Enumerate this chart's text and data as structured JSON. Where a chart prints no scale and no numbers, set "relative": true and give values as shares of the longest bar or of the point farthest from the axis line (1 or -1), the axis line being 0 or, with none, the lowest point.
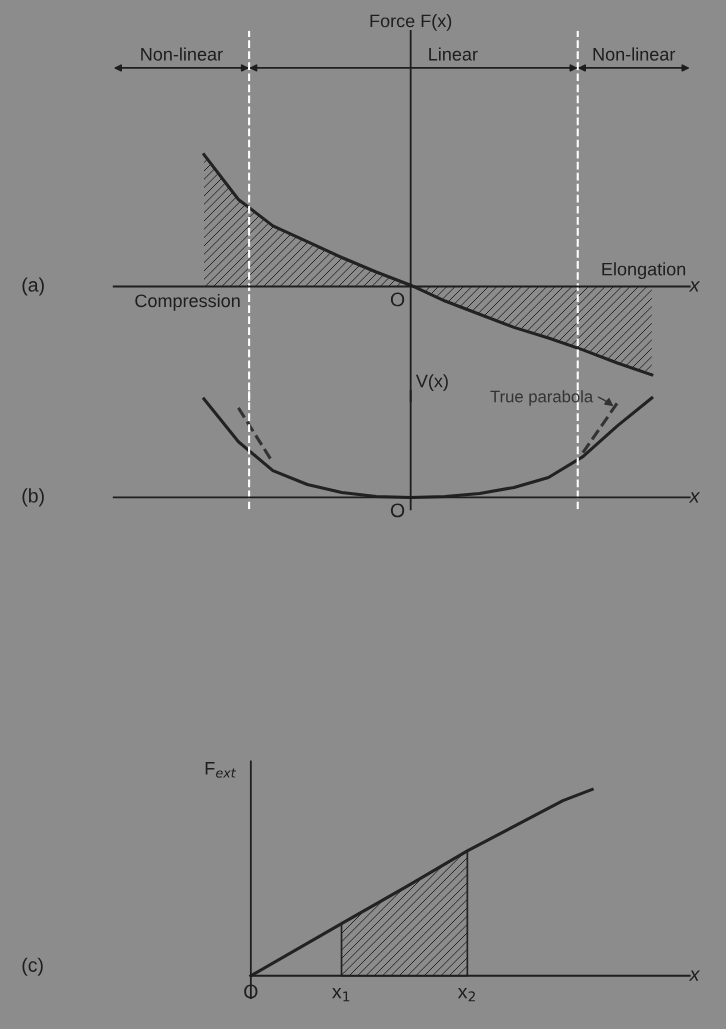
{
  "chart_data": [
    {
      "type": "area",
      "ylabel": "Force F(x)",
      "xlabel": "x",
      "relative": true,
      "tick_labels": false,
      "categories": [
        null,
        null,
        null,
        null,
        null,
        null,
        null,
        null,
        null,
        null,
        null,
        null,
        null,
        null
      ],
      "series": [
        {
          "color": "#222222",
          "values": [
            1,
            0.66,
            0.46,
            0.34,
            0.22,
            0.11,
            0.01,
            -0.11,
            -0.21,
            -0.31,
            -0.39,
            -0.48,
            -0.58,
            -0.67
          ]
        }
      ],
      "annotations": [
        "Non-linear",
        "Linear",
        "Non-linear",
        "Compression",
        "Elongation",
        "O",
        "(a)"
      ]
    },
    {
      "type": "line",
      "ylabel": "V(x)",
      "xlabel": "x",
      "relative": true,
      "tick_labels": false,
      "categories": [
        null,
        null,
        null,
        null,
        null,
        null,
        null,
        null,
        null,
        null,
        null,
        null,
        null,
        null
      ],
      "series": [
        {
          "color": "#222222",
          "values": [
            0.99,
            0.56,
            0.27,
            0.13,
            0.05,
            0.01,
            0,
            0.01,
            0.04,
            0.1,
            0.2,
            0.41,
            0.72,
            1.0
          ]
        },
        {
          "name": "True parabola",
          "color": "#333333",
          "line_style": "dashed",
          "values": [
            null,
            0.9,
            0.35,
            null,
            null,
            null,
            null,
            null,
            null,
            null,
            null,
            0.45,
            0.95,
            null
          ]
        }
      ],
      "annotations": [
        "O",
        "(b)"
      ]
    },
    {
      "type": "line",
      "ylabel": "F$_{ext}$",
      "xlabel": "x",
      "relative": true,
      "tick_labels": "x",
      "xlim": [
        0,
        4.5
      ],
      "xticks": [
        {
          "value": 0,
          "label": "O"
        },
        {
          "value": 0.93,
          "label": "x$_{1}$"
        },
        {
          "value": 2.22,
          "label": "x$_{2}$"
        }
      ],
      "x": [
        0,
        0.93,
        1.6,
        2.22,
        2.8,
        3.2,
        3.5
      ],
      "series": [
        {
          "color": "#222222",
          "values": [
            0,
            0.28,
            0.48,
            0.67,
            0.83,
            0.94,
            1.0
          ]
        },
        {
          "type": "area",
          "color": "#222222",
          "x": [
            0.93,
            1.6,
            2.22
          ],
          "values": [
            0.28,
            0.48,
            0.67
          ]
        }
      ],
      "annotations": [
        "(c)"
      ]
    }
  ]
}
